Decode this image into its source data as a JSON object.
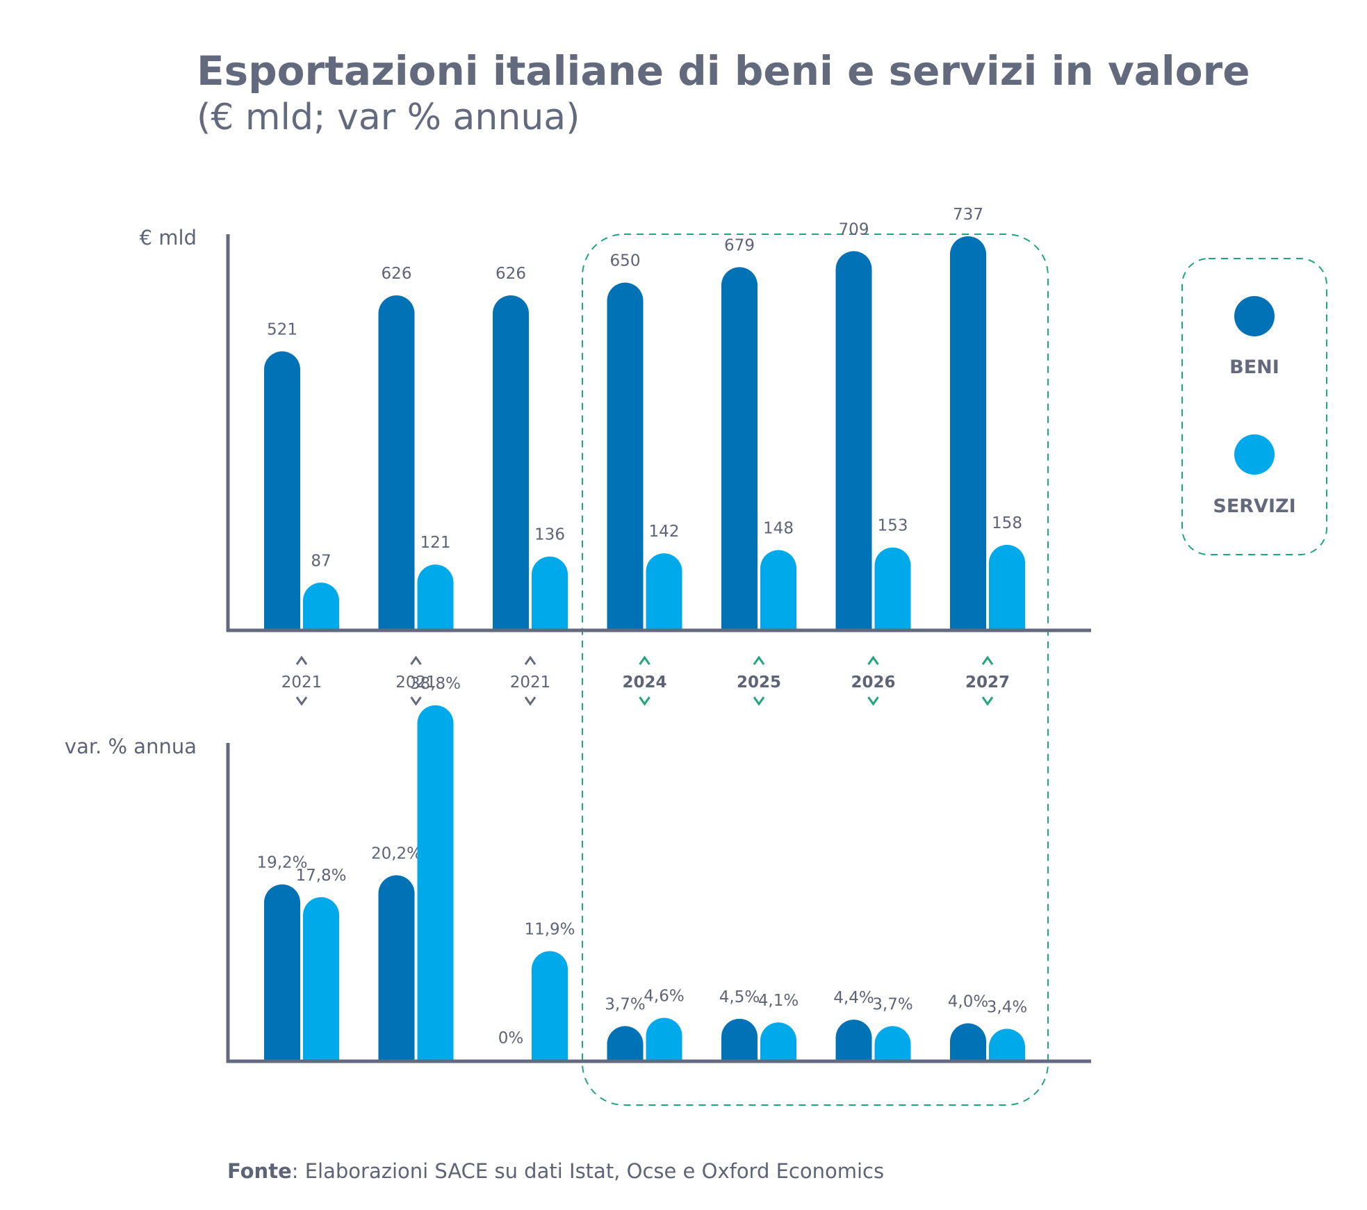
{
  "colors": {
    "beni": "#0072b5",
    "servizi": "#00aaea",
    "axis": "#636a7d",
    "text": "#5d6477",
    "forecast": "#1fa67a"
  },
  "chart_data": {
    "type": "bar",
    "title": "Esportazioni italiane di beni e servizi in valore",
    "subtitle": "(€ mld; var % annua)",
    "categories": [
      "2021",
      "2021",
      "2021",
      "2024",
      "2025",
      "2026",
      "2027"
    ],
    "forecast_from_index": 3,
    "legend": {
      "position": "right",
      "beni": "BENI",
      "servizi": "SERVIZI"
    },
    "panels": [
      {
        "name": "valori",
        "ylabel": "€ mld",
        "ylim": [
          0,
          800
        ],
        "series": [
          {
            "name": "BENI",
            "values": [
              521,
              626,
              626,
              650,
              679,
              709,
              737
            ],
            "labels": [
              "521",
              "626",
              "626",
              "650",
              "679",
              "709",
              "737"
            ]
          },
          {
            "name": "SERVIZI",
            "values": [
              87,
              121,
              136,
              142,
              148,
              153,
              158
            ],
            "labels": [
              "87",
              "121",
              "136",
              "142",
              "148",
              "153",
              "158"
            ]
          }
        ]
      },
      {
        "name": "variazioni",
        "ylabel": "var. % annua",
        "ylim": [
          0,
          40
        ],
        "series": [
          {
            "name": "BENI",
            "values": [
              19.2,
              20.2,
              0,
              3.7,
              4.5,
              4.4,
              4.0
            ],
            "labels": [
              "19,2%",
              "20,2%",
              "0%",
              "3,7%",
              "4,5%",
              "4,4%",
              "4,0%"
            ]
          },
          {
            "name": "SERVIZI",
            "values": [
              17.8,
              38.8,
              11.9,
              4.6,
              4.1,
              3.7,
              3.4
            ],
            "labels": [
              "17,8%",
              "38,8%",
              "11,9%",
              "4,6%",
              "4,1%",
              "3,7%",
              "3,4%"
            ]
          }
        ]
      }
    ],
    "source_label": "Fonte",
    "source_text": ": Elaborazioni SACE su dati Istat, Ocse e Oxford Economics"
  }
}
